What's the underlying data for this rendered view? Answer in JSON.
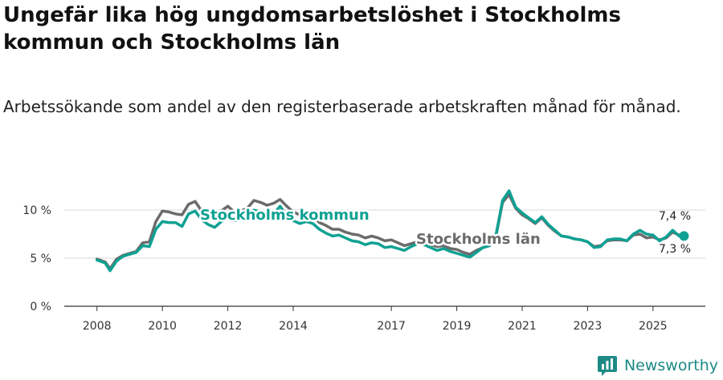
{
  "colors": {
    "kommun": "#0fa193",
    "lan": "#6b6b6b",
    "grid": "#d9d9d9",
    "axis": "#333333",
    "brand": "#1d8a85"
  },
  "header": {
    "title": "Ungefär lika hög ungdomsarbetslöshet i Stockholms kommun och Stockholms län",
    "subtitle": "Arbetssökande som andel av den registerbaserade arbetskraften månad för månad."
  },
  "brand": {
    "name": "Newsworthy",
    "icon": "newsworthy-logo-icon"
  },
  "chart_data": {
    "type": "line",
    "title": "Ungefär lika hög ungdomsarbetslöshet i Stockholms kommun och Stockholms län",
    "subtitle": "Arbetssökande som andel av den registerbaserade arbetskraften månad för månad.",
    "xlabel": "",
    "ylabel": "",
    "xlim": [
      2007.0,
      2026.6
    ],
    "ylim": [
      0,
      12.5
    ],
    "grid": true,
    "y_ticks": [
      {
        "value": 0,
        "label": "0 %"
      },
      {
        "value": 5,
        "label": "5 %"
      },
      {
        "value": 10,
        "label": "10 %"
      }
    ],
    "x_ticks": [
      {
        "value": 2008,
        "label": "2008"
      },
      {
        "value": 2010,
        "label": "2010"
      },
      {
        "value": 2012,
        "label": "2012"
      },
      {
        "value": 2014,
        "label": "2014"
      },
      {
        "value": 2017,
        "label": "2017"
      },
      {
        "value": 2019,
        "label": "2019"
      },
      {
        "value": 2021,
        "label": "2021"
      },
      {
        "value": 2023,
        "label": "2023"
      },
      {
        "value": 2025,
        "label": "2025"
      }
    ],
    "series": [
      {
        "name": "Stockholms län",
        "label": "Stockholms län",
        "last_value_label": "7,4 %",
        "points": [
          [
            2008.0,
            4.9
          ],
          [
            2008.25,
            4.6
          ],
          [
            2008.4,
            3.9
          ],
          [
            2008.6,
            4.9
          ],
          [
            2008.8,
            5.3
          ],
          [
            2009.0,
            5.5
          ],
          [
            2009.2,
            5.7
          ],
          [
            2009.4,
            6.6
          ],
          [
            2009.6,
            6.7
          ],
          [
            2009.8,
            8.8
          ],
          [
            2010.0,
            9.9
          ],
          [
            2010.2,
            9.8
          ],
          [
            2010.4,
            9.6
          ],
          [
            2010.6,
            9.5
          ],
          [
            2010.8,
            10.6
          ],
          [
            2011.0,
            10.9
          ],
          [
            2011.2,
            9.9
          ],
          [
            2011.4,
            9.5
          ],
          [
            2011.6,
            9.1
          ],
          [
            2011.8,
            9.9
          ],
          [
            2012.0,
            10.4
          ],
          [
            2012.2,
            9.8
          ],
          [
            2012.4,
            9.9
          ],
          [
            2012.6,
            10.2
          ],
          [
            2012.8,
            11.0
          ],
          [
            2013.0,
            10.8
          ],
          [
            2013.2,
            10.5
          ],
          [
            2013.4,
            10.7
          ],
          [
            2013.6,
            11.1
          ],
          [
            2013.8,
            10.4
          ],
          [
            2014.0,
            9.8
          ],
          [
            2014.2,
            9.5
          ],
          [
            2014.4,
            9.6
          ],
          [
            2014.6,
            9.4
          ],
          [
            2014.8,
            8.7
          ],
          [
            2015.0,
            8.4
          ],
          [
            2015.2,
            8.0
          ],
          [
            2015.4,
            8.0
          ],
          [
            2015.6,
            7.7
          ],
          [
            2015.8,
            7.5
          ],
          [
            2016.0,
            7.4
          ],
          [
            2016.2,
            7.1
          ],
          [
            2016.4,
            7.3
          ],
          [
            2016.6,
            7.1
          ],
          [
            2016.8,
            6.8
          ],
          [
            2017.0,
            6.9
          ],
          [
            2017.2,
            6.6
          ],
          [
            2017.4,
            6.3
          ],
          [
            2017.6,
            6.5
          ],
          [
            2017.8,
            6.7
          ],
          [
            2018.0,
            6.6
          ],
          [
            2018.2,
            6.4
          ],
          [
            2018.4,
            6.2
          ],
          [
            2018.6,
            6.3
          ],
          [
            2018.8,
            6.0
          ],
          [
            2019.0,
            5.9
          ],
          [
            2019.2,
            5.6
          ],
          [
            2019.4,
            5.4
          ],
          [
            2019.6,
            5.8
          ],
          [
            2019.8,
            6.1
          ],
          [
            2020.0,
            6.3
          ],
          [
            2020.2,
            7.3
          ],
          [
            2020.4,
            10.8
          ],
          [
            2020.6,
            11.6
          ],
          [
            2020.8,
            10.2
          ],
          [
            2021.0,
            9.5
          ],
          [
            2021.2,
            9.1
          ],
          [
            2021.4,
            8.6
          ],
          [
            2021.6,
            9.2
          ],
          [
            2021.8,
            8.4
          ],
          [
            2022.0,
            7.8
          ],
          [
            2022.2,
            7.3
          ],
          [
            2022.4,
            7.2
          ],
          [
            2022.6,
            7.0
          ],
          [
            2022.8,
            6.9
          ],
          [
            2023.0,
            6.7
          ],
          [
            2023.2,
            6.2
          ],
          [
            2023.4,
            6.3
          ],
          [
            2023.6,
            6.8
          ],
          [
            2023.8,
            6.9
          ],
          [
            2024.0,
            6.9
          ],
          [
            2024.2,
            6.8
          ],
          [
            2024.4,
            7.4
          ],
          [
            2024.6,
            7.5
          ],
          [
            2024.8,
            7.1
          ],
          [
            2025.0,
            7.2
          ],
          [
            2025.2,
            6.9
          ],
          [
            2025.4,
            7.1
          ],
          [
            2025.6,
            7.7
          ],
          [
            2025.8,
            7.4
          ]
        ]
      },
      {
        "name": "Stockholms kommun",
        "label": "Stockholms kommun",
        "last_value_label": "7,3 %",
        "points": [
          [
            2008.0,
            4.8
          ],
          [
            2008.25,
            4.5
          ],
          [
            2008.4,
            3.7
          ],
          [
            2008.6,
            4.7
          ],
          [
            2008.8,
            5.2
          ],
          [
            2009.0,
            5.4
          ],
          [
            2009.2,
            5.6
          ],
          [
            2009.4,
            6.3
          ],
          [
            2009.6,
            6.2
          ],
          [
            2009.8,
            8.0
          ],
          [
            2010.0,
            8.8
          ],
          [
            2010.2,
            8.7
          ],
          [
            2010.4,
            8.7
          ],
          [
            2010.6,
            8.3
          ],
          [
            2010.8,
            9.6
          ],
          [
            2011.0,
            9.9
          ],
          [
            2011.2,
            9.0
          ],
          [
            2011.4,
            8.5
          ],
          [
            2011.6,
            8.2
          ],
          [
            2011.8,
            8.8
          ],
          [
            2012.0,
            9.2
          ],
          [
            2012.2,
            8.9
          ],
          [
            2012.4,
            9.0
          ],
          [
            2012.6,
            9.5
          ],
          [
            2012.8,
            10.0
          ],
          [
            2013.0,
            9.8
          ],
          [
            2013.2,
            9.5
          ],
          [
            2013.4,
            9.6
          ],
          [
            2013.6,
            10.4
          ],
          [
            2013.8,
            9.4
          ],
          [
            2014.0,
            8.9
          ],
          [
            2014.2,
            8.6
          ],
          [
            2014.4,
            8.8
          ],
          [
            2014.6,
            8.6
          ],
          [
            2014.8,
            8.0
          ],
          [
            2015.0,
            7.6
          ],
          [
            2015.2,
            7.3
          ],
          [
            2015.4,
            7.4
          ],
          [
            2015.6,
            7.1
          ],
          [
            2015.8,
            6.8
          ],
          [
            2016.0,
            6.7
          ],
          [
            2016.2,
            6.4
          ],
          [
            2016.4,
            6.6
          ],
          [
            2016.6,
            6.5
          ],
          [
            2016.8,
            6.1
          ],
          [
            2017.0,
            6.2
          ],
          [
            2017.2,
            6.0
          ],
          [
            2017.4,
            5.8
          ],
          [
            2017.6,
            6.2
          ],
          [
            2017.8,
            6.5
          ],
          [
            2018.0,
            6.4
          ],
          [
            2018.2,
            6.1
          ],
          [
            2018.4,
            5.8
          ],
          [
            2018.6,
            6.0
          ],
          [
            2018.8,
            5.7
          ],
          [
            2019.0,
            5.5
          ],
          [
            2019.2,
            5.3
          ],
          [
            2019.4,
            5.1
          ],
          [
            2019.6,
            5.6
          ],
          [
            2019.8,
            6.1
          ],
          [
            2020.0,
            6.3
          ],
          [
            2020.2,
            7.4
          ],
          [
            2020.4,
            11.0
          ],
          [
            2020.6,
            12.0
          ],
          [
            2020.8,
            10.3
          ],
          [
            2021.0,
            9.7
          ],
          [
            2021.2,
            9.2
          ],
          [
            2021.4,
            8.7
          ],
          [
            2021.6,
            9.3
          ],
          [
            2021.8,
            8.5
          ],
          [
            2022.0,
            7.9
          ],
          [
            2022.2,
            7.3
          ],
          [
            2022.4,
            7.2
          ],
          [
            2022.6,
            7.0
          ],
          [
            2022.8,
            6.9
          ],
          [
            2023.0,
            6.7
          ],
          [
            2023.2,
            6.1
          ],
          [
            2023.4,
            6.2
          ],
          [
            2023.6,
            6.9
          ],
          [
            2023.8,
            7.0
          ],
          [
            2024.0,
            7.0
          ],
          [
            2024.2,
            6.8
          ],
          [
            2024.4,
            7.5
          ],
          [
            2024.6,
            7.9
          ],
          [
            2024.8,
            7.5
          ],
          [
            2025.0,
            7.4
          ],
          [
            2025.2,
            6.8
          ],
          [
            2025.4,
            7.2
          ],
          [
            2025.6,
            7.9
          ],
          [
            2025.8,
            7.3
          ]
        ]
      }
    ]
  }
}
